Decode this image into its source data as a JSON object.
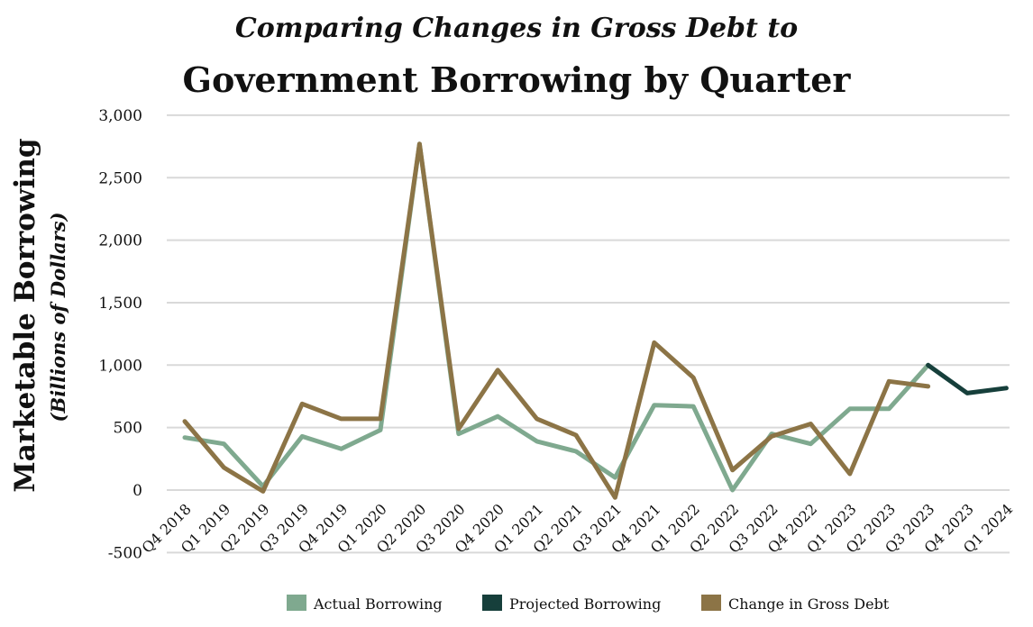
{
  "chart_data": {
    "type": "line",
    "title_line1": "Comparing Changes in Gross Debt to",
    "title_line2": "Government Borrowing by Quarter",
    "ylabel": "Marketable Borrowing",
    "ylabel_sub": "(Billions of Dollars)",
    "xlabel": "",
    "ylim": [
      -500,
      3000
    ],
    "yticks": [
      -500,
      0,
      500,
      1000,
      1500,
      2000,
      2500,
      3000
    ],
    "ytick_labels": [
      "-500",
      "0",
      "500",
      "1,000",
      "1,500",
      "2,000",
      "2,500",
      "3,000"
    ],
    "grid": true,
    "legend_position": "bottom",
    "categories": [
      "Q4 2018",
      "Q1 2019",
      "Q2 2019",
      "Q3 2019",
      "Q4 2019",
      "Q1 2020",
      "Q2 2020",
      "Q3 2020",
      "Q4 2020",
      "Q1 2021",
      "Q2 2021",
      "Q3 2021",
      "Q4 2021",
      "Q1 2022",
      "Q2 2022",
      "Q3 2022",
      "Q4 2022",
      "Q1 2023",
      "Q2 2023",
      "Q3 2023",
      "Q4 2023",
      "Q1 2024"
    ],
    "series": [
      {
        "name": "Actual Borrowing",
        "color": "#7fa98f",
        "values": [
          420,
          370,
          30,
          430,
          330,
          480,
          2770,
          450,
          590,
          390,
          310,
          100,
          680,
          670,
          0,
          450,
          370,
          650,
          650,
          1000,
          null,
          null
        ]
      },
      {
        "name": "Projected Borrowing",
        "color": "#163f3b",
        "values": [
          null,
          null,
          null,
          null,
          null,
          null,
          null,
          null,
          null,
          null,
          null,
          null,
          null,
          null,
          null,
          null,
          null,
          null,
          null,
          1000,
          776,
          816
        ]
      },
      {
        "name": "Change in Gross Debt",
        "color": "#8c7446",
        "values": [
          550,
          180,
          -10,
          690,
          570,
          570,
          2770,
          490,
          960,
          570,
          440,
          -60,
          1180,
          900,
          160,
          430,
          530,
          130,
          870,
          830,
          null,
          null
        ]
      }
    ]
  }
}
